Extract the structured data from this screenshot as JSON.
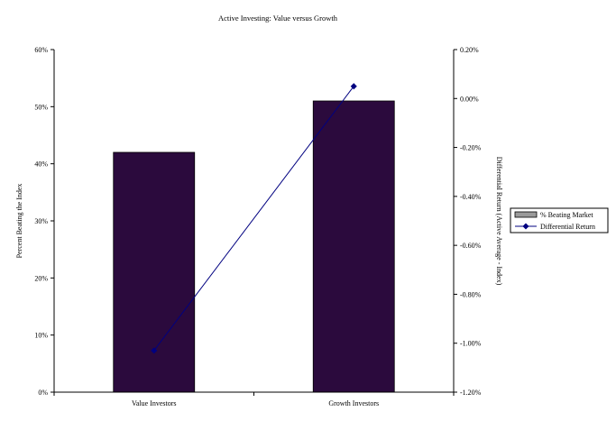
{
  "chart_data": {
    "type": "bar",
    "title": "Active Investing: Value versus Growth",
    "categories": [
      "Value Investors",
      "Growth Investors"
    ],
    "series": [
      {
        "name": "% Beating Market",
        "type": "bar",
        "axis": "left",
        "values": [
          42,
          51
        ],
        "color": "#2b0a3d"
      },
      {
        "name": "Differential Return",
        "type": "line",
        "axis": "right",
        "values": [
          -1.03,
          0.05
        ],
        "color": "#000080"
      }
    ],
    "y_left": {
      "label": "Percent Beating the Index",
      "ylim": [
        0,
        60
      ],
      "ticks": [
        0,
        10,
        20,
        30,
        40,
        50,
        60
      ],
      "tick_labels": [
        "0%",
        "10%",
        "20%",
        "30%",
        "40%",
        "50%",
        "60%"
      ]
    },
    "y_right": {
      "label": "Differential Return (Active Average - Index)",
      "ylim": [
        -1.2,
        0.2
      ],
      "ticks": [
        -1.2,
        -1.0,
        -0.8,
        -0.6,
        -0.4,
        -0.2,
        0.0,
        0.2
      ],
      "tick_labels": [
        "-1.20%",
        "-1.00%",
        "-0.80%",
        "-0.60%",
        "-0.40%",
        "-0.20%",
        "0.00%",
        "0.20%"
      ]
    },
    "grid": false,
    "legend_position": "right"
  }
}
